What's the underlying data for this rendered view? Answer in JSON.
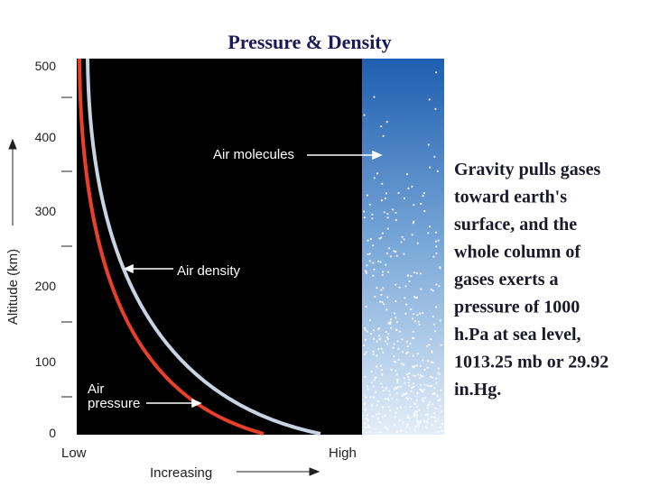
{
  "header": {
    "title": "Pressure & Density"
  },
  "figure": {
    "axis_title": "Altitude (km)",
    "yticks": [
      "500",
      "400",
      "300",
      "200",
      "100",
      "0"
    ],
    "x_low": "Low",
    "x_high": "High",
    "x_title": "Increasing",
    "labels": {
      "molecules": "Air molecules",
      "density": "Air density",
      "pressure_1": "Air",
      "pressure_2": "pressure"
    }
  },
  "body": {
    "lines": [
      "Gravity pulls gases",
      "toward earth's",
      "surface, and the",
      "whole column of",
      "gases exerts a",
      "pressure of 1000",
      "h.Pa at sea level,",
      "1013.25 mb or 29.92",
      "in.Hg."
    ]
  }
}
